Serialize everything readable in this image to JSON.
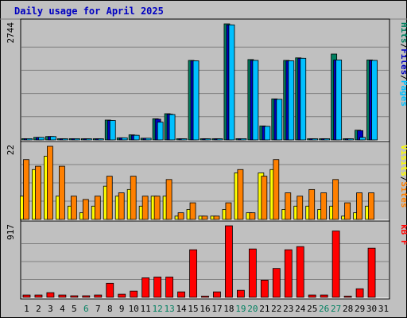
{
  "title": "Daily usage for April 2025",
  "colors": {
    "pages": "#00c0ff",
    "files": "#0000c0",
    "hits": "#008060",
    "sites": "#ff8000",
    "visits": "#ffff00",
    "kbf": "#ff0000",
    "weekend_day": "#008060",
    "weekday": "#000000",
    "panel_bg": "#c0c0c0"
  },
  "chart_data": {
    "type": "bar",
    "categories": [
      "1",
      "2",
      "3",
      "4",
      "5",
      "6",
      "7",
      "8",
      "9",
      "10",
      "11",
      "12",
      "13",
      "14",
      "15",
      "16",
      "17",
      "18",
      "19",
      "20",
      "21",
      "22",
      "23",
      "24",
      "25",
      "26",
      "27",
      "28",
      "29",
      "30",
      "31"
    ],
    "weekend_days": [
      "6",
      "12",
      "13",
      "19",
      "20",
      "26",
      "27"
    ],
    "panels": [
      {
        "id": "hits_files_pages",
        "ymax_label": "2744",
        "ymax": 2744,
        "legend": [
          {
            "label": "Pages",
            "color": "#00c0ff"
          },
          {
            "label": "/",
            "color": "#000000"
          },
          {
            "label": "Files",
            "color": "#0000c0"
          },
          {
            "label": "/",
            "color": "#000000"
          },
          {
            "label": "Hits",
            "color": "#008060"
          }
        ],
        "series": [
          {
            "name": "Hits",
            "color": "#008060",
            "values": [
              30,
              60,
              80,
              20,
              30,
              20,
              20,
              470,
              50,
              120,
              40,
              500,
              620,
              20,
              1880,
              20,
              20,
              2744,
              30,
              1900,
              330,
              970,
              1880,
              1940,
              20,
              20,
              2030,
              20,
              230,
              1890,
              0
            ]
          },
          {
            "name": "Files",
            "color": "#0000c0",
            "values": [
              30,
              60,
              80,
              20,
              30,
              20,
              20,
              460,
              50,
              110,
              40,
              490,
              610,
              20,
              1870,
              20,
              20,
              2720,
              30,
              1880,
              320,
              960,
              1870,
              1930,
              20,
              20,
              1890,
              20,
              220,
              1880,
              0
            ]
          },
          {
            "name": "Pages",
            "color": "#00c0ff",
            "values": [
              30,
              60,
              80,
              20,
              30,
              20,
              20,
              460,
              50,
              110,
              40,
              420,
              600,
              20,
              1870,
              20,
              20,
              2720,
              30,
              1880,
              320,
              960,
              1870,
              1930,
              20,
              20,
              1890,
              20,
              60,
              1880,
              0
            ]
          }
        ]
      },
      {
        "id": "visits_sites",
        "ymax_label": "22",
        "ymax": 22,
        "legend": [
          {
            "label": "Sites",
            "color": "#ff8000"
          },
          {
            "label": "/",
            "color": "#000000"
          },
          {
            "label": "Visits",
            "color": "#ffff00"
          }
        ],
        "series": [
          {
            "name": "Visits",
            "color": "#ffff00",
            "values": [
              7,
              15,
              19,
              7,
              4,
              2,
              4,
              10,
              7,
              9,
              4,
              7,
              7,
              1,
              3,
              1,
              1,
              3,
              14,
              2,
              14,
              15,
              3,
              4,
              4,
              3,
              4,
              1,
              2,
              4,
              0
            ]
          },
          {
            "name": "Sites",
            "color": "#ff8000",
            "values": [
              18,
              16,
              22,
              16,
              7,
              6,
              7,
              13,
              8,
              13,
              7,
              7,
              12,
              2,
              5,
              1,
              1,
              5,
              15,
              2,
              13,
              18,
              8,
              7,
              9,
              8,
              12,
              5,
              8,
              8,
              0
            ]
          }
        ]
      },
      {
        "id": "kbf",
        "ymax_label": "917",
        "ymax": 917,
        "legend": [
          {
            "label": "kB F",
            "color": "#ff0000"
          }
        ],
        "series": [
          {
            "name": "kB F",
            "color": "#ff0000",
            "values": [
              30,
              30,
              60,
              30,
              20,
              20,
              30,
              180,
              40,
              80,
              250,
              260,
              260,
              70,
              610,
              5,
              70,
              917,
              90,
              620,
              220,
              370,
              610,
              650,
              30,
              30,
              850,
              10,
              110,
              630,
              0
            ]
          }
        ]
      }
    ]
  }
}
